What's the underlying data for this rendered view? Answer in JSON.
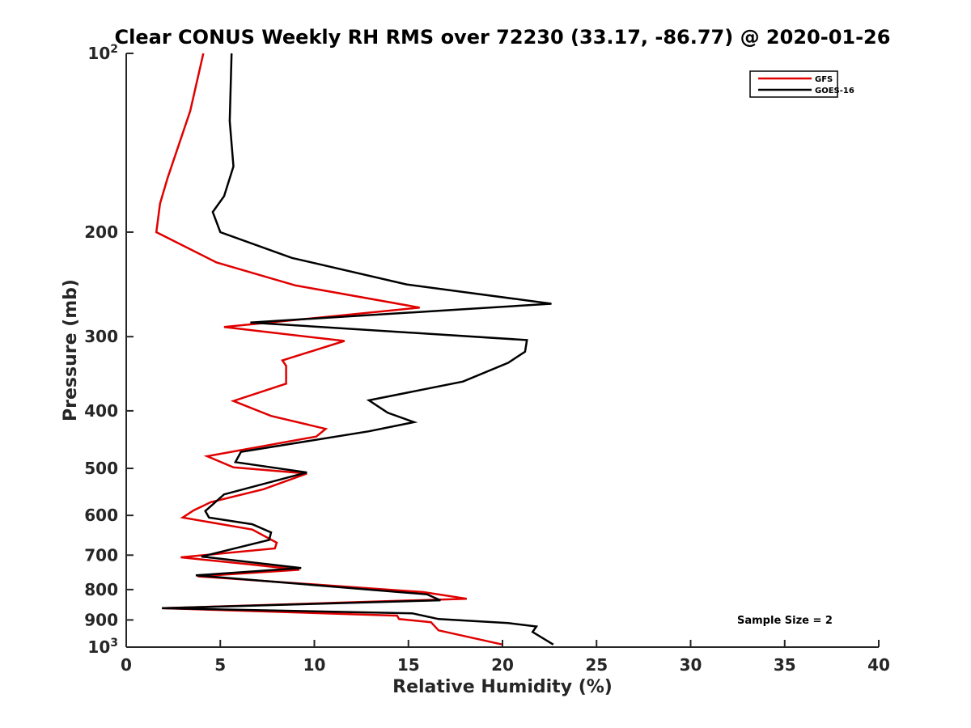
{
  "chart_data": {
    "type": "line",
    "title": "Clear CONUS Weekly RH RMS over 72230 (33.17, -86.77) @ 2020-01-26",
    "xlabel": "Relative Humidity (%)",
    "ylabel": "Pressure (mb)",
    "xlim": [
      0,
      40
    ],
    "ylim": [
      100,
      1000
    ],
    "yscale": "log",
    "y_reversed": true,
    "x_ticks": [
      0,
      5,
      10,
      15,
      20,
      25,
      30,
      35,
      40
    ],
    "x_tick_labels": [
      "0",
      "5",
      "10",
      "15",
      "20",
      "25",
      "30",
      "35",
      "40"
    ],
    "y_ticks": [
      100,
      200,
      300,
      400,
      500,
      600,
      700,
      800,
      900,
      1000
    ],
    "y_tick_labels": [
      {
        "base": "10",
        "exp": "2"
      },
      {
        "base": "200",
        "exp": ""
      },
      {
        "base": "300",
        "exp": ""
      },
      {
        "base": "400",
        "exp": ""
      },
      {
        "base": "500",
        "exp": ""
      },
      {
        "base": "600",
        "exp": ""
      },
      {
        "base": "700",
        "exp": ""
      },
      {
        "base": "800",
        "exp": ""
      },
      {
        "base": "900",
        "exp": ""
      },
      {
        "base": "10",
        "exp": "3"
      }
    ],
    "legend_position": "top-right",
    "annotation": "Sample Size = 2",
    "series": [
      {
        "name": "GFS",
        "color": "#e00000",
        "points": [
          [
            4.1,
            100
          ],
          [
            3.4,
            125
          ],
          [
            2.2,
            162
          ],
          [
            1.8,
            179
          ],
          [
            1.6,
            200
          ],
          [
            4.8,
            225
          ],
          [
            9.0,
            246
          ],
          [
            15.6,
            268
          ],
          [
            5.2,
            289
          ],
          [
            11.6,
            305
          ],
          [
            8.3,
            329
          ],
          [
            8.5,
            336
          ],
          [
            8.5,
            360
          ],
          [
            5.7,
            385
          ],
          [
            7.7,
            408
          ],
          [
            10.6,
            429
          ],
          [
            10.1,
            442
          ],
          [
            4.3,
            477
          ],
          [
            5.7,
            498
          ],
          [
            9.6,
            510
          ],
          [
            7.3,
            542
          ],
          [
            4.5,
            570
          ],
          [
            3.6,
            588
          ],
          [
            3.0,
            605
          ],
          [
            6.7,
            634
          ],
          [
            8.0,
            667
          ],
          [
            7.9,
            682
          ],
          [
            2.9,
            706
          ],
          [
            6.5,
            725
          ],
          [
            9.2,
            741
          ],
          [
            3.8,
            760
          ],
          [
            15.8,
            808
          ],
          [
            18.1,
            829
          ],
          [
            1.9,
            860
          ],
          [
            14.4,
            885
          ],
          [
            14.5,
            897
          ],
          [
            16.2,
            908
          ],
          [
            16.6,
            937
          ],
          [
            20.0,
            990
          ]
        ]
      },
      {
        "name": "GOES-16",
        "color": "#000000",
        "points": [
          [
            5.6,
            100
          ],
          [
            5.5,
            130
          ],
          [
            5.7,
            155
          ],
          [
            5.2,
            174
          ],
          [
            4.6,
            185
          ],
          [
            5.0,
            200
          ],
          [
            8.8,
            221
          ],
          [
            14.9,
            245
          ],
          [
            22.6,
            264
          ],
          [
            6.6,
            284
          ],
          [
            21.3,
            304
          ],
          [
            21.2,
            318
          ],
          [
            20.3,
            332
          ],
          [
            17.9,
            357
          ],
          [
            12.9,
            384
          ],
          [
            13.9,
            403
          ],
          [
            15.3,
            418
          ],
          [
            12.9,
            433
          ],
          [
            6.1,
            469
          ],
          [
            5.8,
            488
          ],
          [
            9.6,
            508
          ],
          [
            5.2,
            553
          ],
          [
            4.2,
            590
          ],
          [
            4.4,
            605
          ],
          [
            6.7,
            621
          ],
          [
            7.7,
            641
          ],
          [
            7.6,
            660
          ],
          [
            4.0,
            704
          ],
          [
            9.3,
            736
          ],
          [
            3.7,
            757
          ],
          [
            16.0,
            815
          ],
          [
            16.7,
            834
          ],
          [
            1.9,
            860
          ],
          [
            15.2,
            877
          ],
          [
            16.6,
            897
          ],
          [
            20.3,
            911
          ],
          [
            21.8,
            923
          ],
          [
            21.6,
            943
          ],
          [
            22.7,
            990
          ]
        ]
      }
    ]
  }
}
